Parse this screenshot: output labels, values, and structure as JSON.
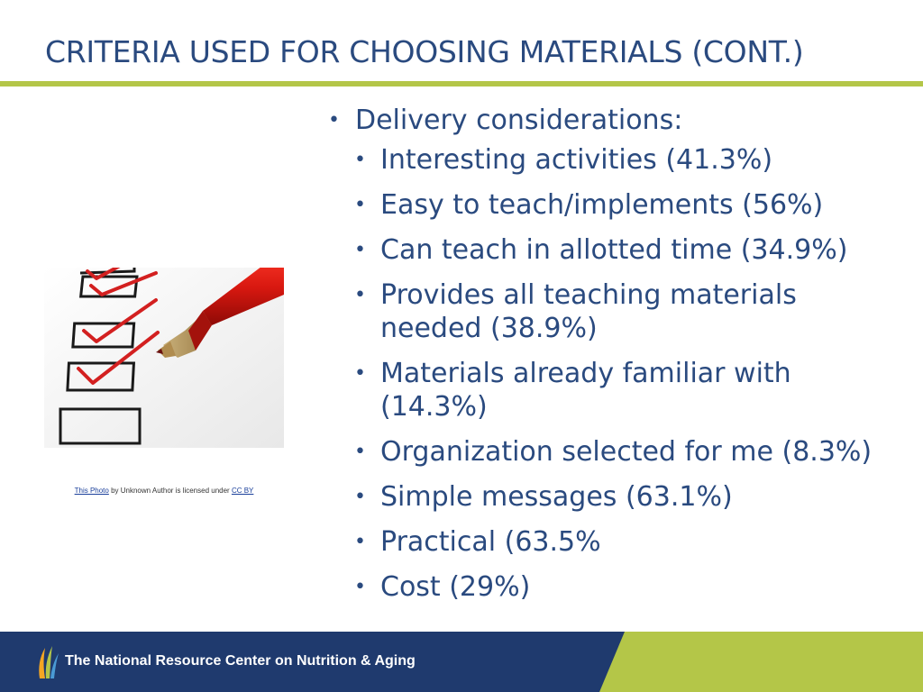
{
  "title": "CRITERIA USED FOR CHOOSING MATERIALS (CONT.)",
  "bullet_glyph": "•",
  "content": {
    "heading": "Delivery considerations:",
    "items": [
      [
        "Interesting activities (41.3%)"
      ],
      [
        "Easy to teach/implements (56%)"
      ],
      [
        "Can teach in allotted time (34.9%)"
      ],
      [
        "Provides all teaching materials",
        "needed (38.9%)"
      ],
      [
        "Materials already familiar with",
        "(14.3%)"
      ],
      [
        "Organization selected for me (8.3%)"
      ],
      [
        "Simple messages (63.1%)"
      ],
      [
        "Practical (63.5%"
      ],
      [
        "Cost (29%)"
      ]
    ]
  },
  "photo": {
    "subject": "checklist-with-red-pencil",
    "caption": {
      "link_text": "This Photo",
      "middle_text": " by Unknown Author is licensed under ",
      "license_text": "CC BY"
    }
  },
  "footer": {
    "org_name": "The National Resource Center on Nutrition & Aging"
  },
  "colors": {
    "title": "#2a4a7f",
    "accent_green": "#b4c648",
    "footer_blue": "#1f3a6e",
    "check_red": "#d32020"
  }
}
